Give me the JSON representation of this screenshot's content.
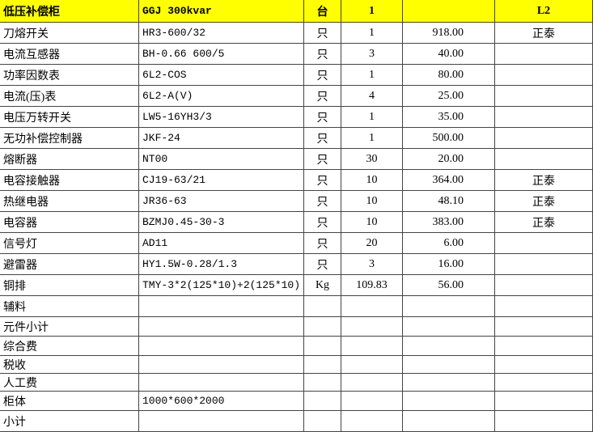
{
  "header": {
    "name": "低压补偿柜",
    "model": "GGJ 300kvar",
    "unit": "台",
    "qty": "1",
    "brand": "L2"
  },
  "rows": [
    {
      "name": "刀熔开关",
      "model": "HR3-600/32",
      "unit": "只",
      "qty": "1",
      "price": "918.00",
      "brand": "正泰"
    },
    {
      "name": "电流互感器",
      "model": "BH-0.66 600/5",
      "unit": "只",
      "qty": "3",
      "price": "40.00"
    },
    {
      "name": "功率因数表",
      "model": "6L2-COS",
      "unit": "只",
      "qty": "1",
      "price": "80.00"
    },
    {
      "name": "电流(压)表",
      "model": "6L2-A(V)",
      "unit": "只",
      "qty": "4",
      "price": "25.00"
    },
    {
      "name": "电压万转开关",
      "model": "LW5-16YH3/3",
      "unit": "只",
      "qty": "1",
      "price": "35.00"
    },
    {
      "name": "无功补偿控制器",
      "model": "JKF-24",
      "unit": "只",
      "qty": "1",
      "price": "500.00"
    },
    {
      "name": "熔断器",
      "model": "NT00",
      "unit": "只",
      "qty": "30",
      "price": "20.00"
    },
    {
      "name": "电容接触器",
      "model": "CJ19-63/21",
      "unit": "只",
      "qty": "10",
      "price": "364.00",
      "brand": "正泰"
    },
    {
      "name": "热继电器",
      "model": "JR36-63",
      "unit": "只",
      "qty": "10",
      "price": "48.10",
      "brand": "正泰"
    },
    {
      "name": "电容器",
      "model": "BZMJ0.45-30-3",
      "unit": "只",
      "qty": "10",
      "price": "383.00",
      "brand": "正泰"
    },
    {
      "name": "信号灯",
      "model": "AD11",
      "unit": "只",
      "qty": "20",
      "price": "6.00"
    },
    {
      "name": "避雷器",
      "model": "HY1.5W-0.28/1.3",
      "unit": "只",
      "qty": "3",
      "price": "16.00"
    },
    {
      "name": "铜排",
      "model": "TMY-3*2(125*10)+2(125*10)",
      "unit": "Kg",
      "qty": "109.83",
      "price": "56.00"
    },
    {
      "name": "辅料"
    },
    {
      "name": "元件小计"
    },
    {
      "name": "综合费"
    },
    {
      "name": "税收"
    },
    {
      "name": "人工费"
    },
    {
      "name": "柜体",
      "model": "1000*600*2000"
    },
    {
      "name": "小计"
    }
  ]
}
